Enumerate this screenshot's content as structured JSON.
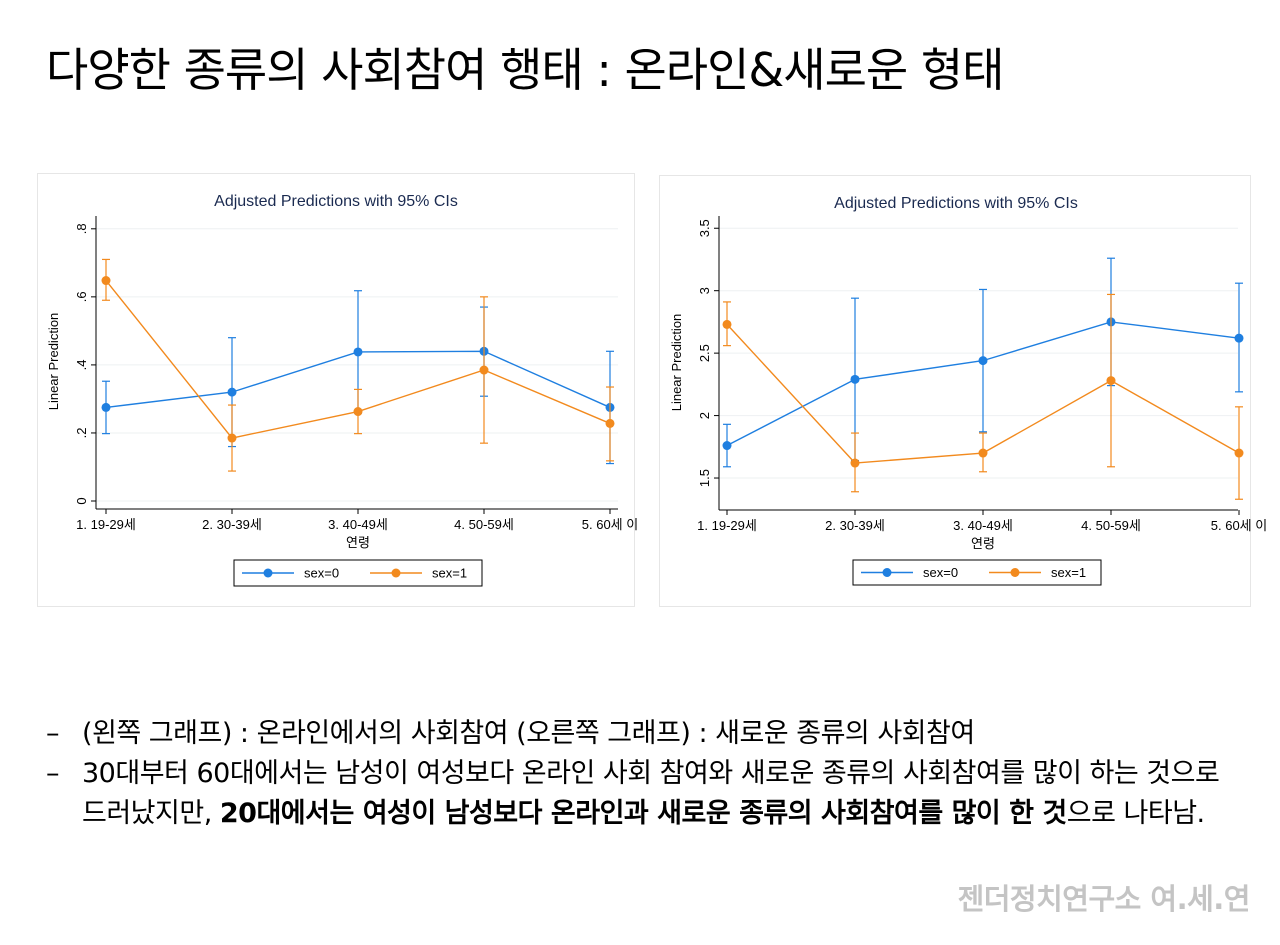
{
  "slide": {
    "title": "다양한 종류의 사회참여 행태 : 온라인&새로운 형태",
    "notes": {
      "bullet_1": "(왼쪽 그래프) : 온라인에서의 사회참여 (오른쪽 그래프) : 새로운 종류의 사회참여",
      "bullet_2_part1": "30대부터 60대에서는 남성이 여성보다 온라인 사회 참여와 새로운 종류의 사회참여를 많이 하는 것으로 드러났지만, ",
      "bullet_2_bold": "20대에서는 여성이 남성보다 온라인과 새로운 종류의 사회참여를 많이 한 것",
      "bullet_2_part2": "으로 나타남."
    },
    "footer": "젠더정치연구소 여.세.연"
  },
  "chart_data": [
    {
      "type": "line",
      "title": "Adjusted Predictions with 95% CIs",
      "xlabel": "연령",
      "ylabel": "Linear Prediction",
      "categories": [
        "1. 19-29세",
        "2. 30-39세",
        "3. 40-49세",
        "4. 50-59세",
        "5. 60세 이"
      ],
      "yticks": [
        0,
        0.2,
        0.4,
        0.6,
        0.8
      ],
      "ytick_labels": [
        "0",
        ".2",
        ".4",
        ".6",
        ".8"
      ],
      "ylim": [
        0,
        0.82
      ],
      "grid": true,
      "legend": "bottom",
      "series": [
        {
          "name": "sex=0",
          "color": "#1f7fe0",
          "values": [
            0.275,
            0.32,
            0.438,
            0.44,
            0.275
          ],
          "ci_low": [
            0.198,
            0.16,
            0.258,
            0.308,
            0.11
          ],
          "ci_high": [
            0.352,
            0.48,
            0.618,
            0.57,
            0.44
          ]
        },
        {
          "name": "sex=1",
          "color": "#f28a1e",
          "values": [
            0.648,
            0.185,
            0.263,
            0.385,
            0.228
          ],
          "ci_low": [
            0.59,
            0.088,
            0.198,
            0.17,
            0.118
          ],
          "ci_high": [
            0.71,
            0.282,
            0.328,
            0.6,
            0.335
          ]
        }
      ]
    },
    {
      "type": "line",
      "title": "Adjusted Predictions with 95% CIs",
      "xlabel": "연령",
      "ylabel": "Linear Prediction",
      "categories": [
        "1. 19-29세",
        "2. 30-39세",
        "3. 40-49세",
        "4. 50-59세",
        "5. 60세 이"
      ],
      "yticks": [
        1.5,
        2,
        2.5,
        3,
        3.5
      ],
      "ytick_labels": [
        "1.5",
        "2",
        "2.5",
        "3",
        "3.5"
      ],
      "ylim": [
        1.3,
        3.55
      ],
      "grid": true,
      "legend": "bottom",
      "series": [
        {
          "name": "sex=0",
          "color": "#1f7fe0",
          "values": [
            1.76,
            2.29,
            2.44,
            2.75,
            2.62
          ],
          "ci_low": [
            1.59,
            1.64,
            1.87,
            2.24,
            2.19
          ],
          "ci_high": [
            1.93,
            2.94,
            3.01,
            3.26,
            3.06
          ]
        },
        {
          "name": "sex=1",
          "color": "#f28a1e",
          "values": [
            2.73,
            1.62,
            1.7,
            2.28,
            1.7
          ],
          "ci_low": [
            2.56,
            1.39,
            1.55,
            1.59,
            1.33
          ],
          "ci_high": [
            2.91,
            1.86,
            1.86,
            2.97,
            2.07
          ]
        }
      ]
    }
  ]
}
